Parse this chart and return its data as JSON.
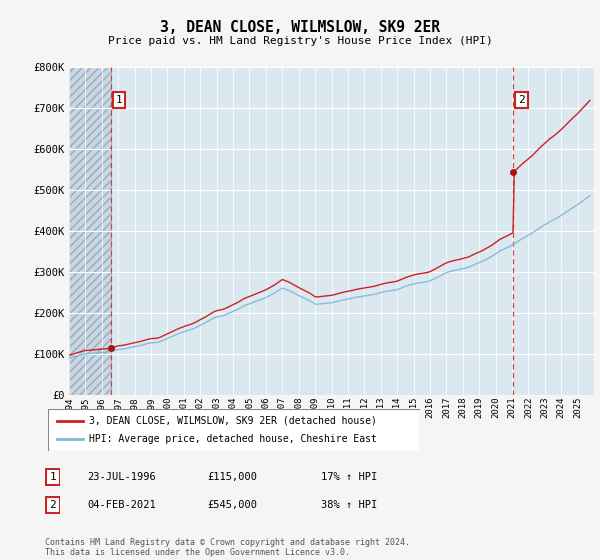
{
  "title": "3, DEAN CLOSE, WILMSLOW, SK9 2ER",
  "subtitle": "Price paid vs. HM Land Registry's House Price Index (HPI)",
  "hpi_color": "#7eb8d4",
  "sale_color": "#cc2222",
  "marker_color": "#aa1111",
  "fig_bg": "#f5f5f5",
  "plot_bg": "#dce8f0",
  "hatch_color": "#b8c8d8",
  "grid_color": "#ffffff",
  "ylim": [
    0,
    800000
  ],
  "yticks": [
    0,
    100000,
    200000,
    300000,
    400000,
    500000,
    600000,
    700000,
    800000
  ],
  "ytick_labels": [
    "£0",
    "£100K",
    "£200K",
    "£300K",
    "£400K",
    "£500K",
    "£600K",
    "£700K",
    "£800K"
  ],
  "xmin": 1994,
  "xmax": 2026,
  "sale1_x": 1996.55,
  "sale1_y": 115000,
  "sale2_x": 2021.08,
  "sale2_y": 545000,
  "legend_line1": "3, DEAN CLOSE, WILMSLOW, SK9 2ER (detached house)",
  "legend_line2": "HPI: Average price, detached house, Cheshire East",
  "annotation1_date": "23-JUL-1996",
  "annotation1_price": "£115,000",
  "annotation1_hpi": "17% ↑ HPI",
  "annotation2_date": "04-FEB-2021",
  "annotation2_price": "£545,000",
  "annotation2_hpi": "38% ↑ HPI",
  "footer": "Contains HM Land Registry data © Crown copyright and database right 2024.\nThis data is licensed under the Open Government Licence v3.0."
}
